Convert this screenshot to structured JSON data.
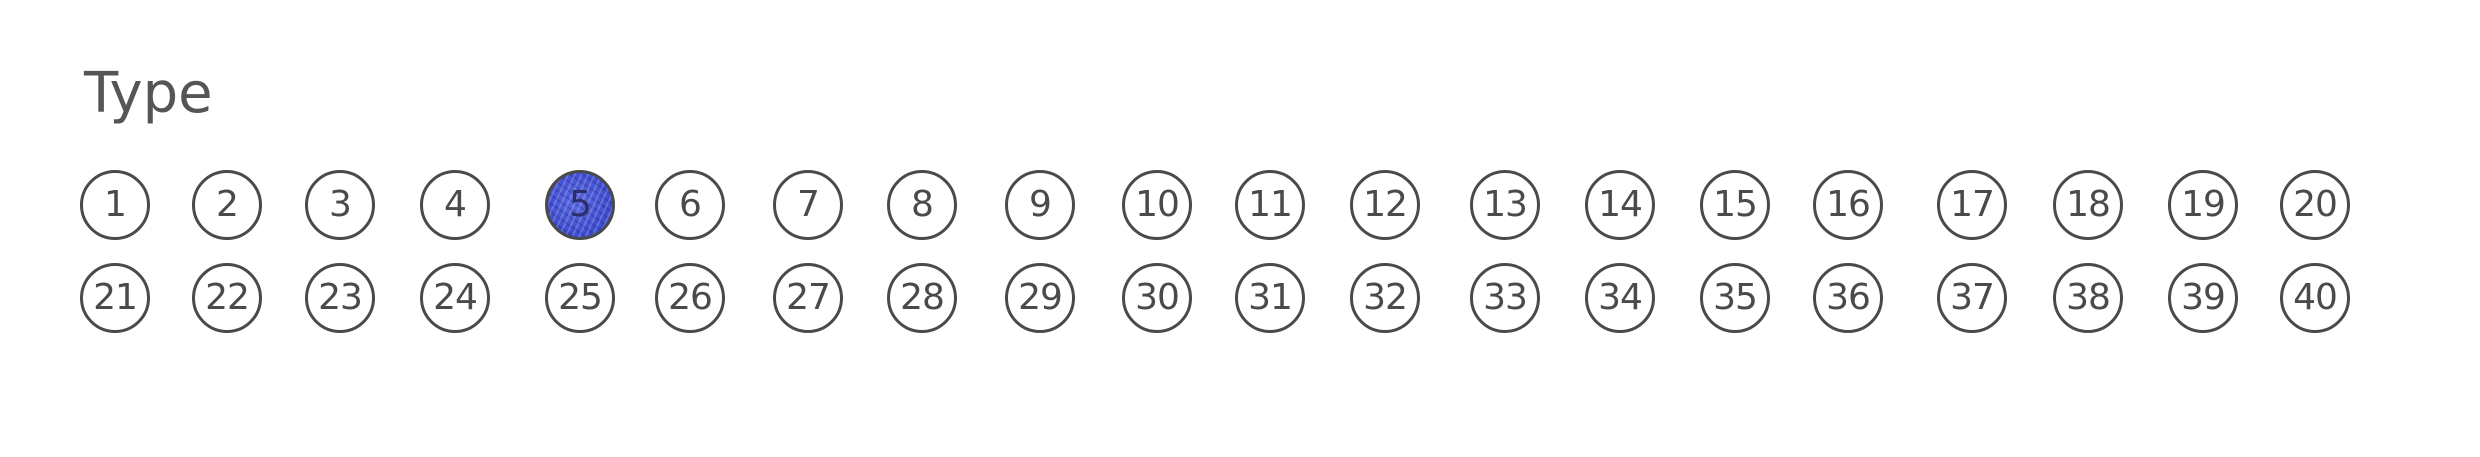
{
  "section_title": "Type",
  "options": [
    {
      "label": "1",
      "selected": false
    },
    {
      "label": "2",
      "selected": false
    },
    {
      "label": "3",
      "selected": false
    },
    {
      "label": "4",
      "selected": false
    },
    {
      "label": "5",
      "selected": true
    },
    {
      "label": "6",
      "selected": false
    },
    {
      "label": "7",
      "selected": false
    },
    {
      "label": "8",
      "selected": false
    },
    {
      "label": "9",
      "selected": false
    },
    {
      "label": "10",
      "selected": false
    },
    {
      "label": "11",
      "selected": false
    },
    {
      "label": "12",
      "selected": false
    },
    {
      "label": "13",
      "selected": false
    },
    {
      "label": "14",
      "selected": false
    },
    {
      "label": "15",
      "selected": false
    },
    {
      "label": "16",
      "selected": false
    },
    {
      "label": "17",
      "selected": false
    },
    {
      "label": "18",
      "selected": false
    },
    {
      "label": "19",
      "selected": false
    },
    {
      "label": "20",
      "selected": false
    },
    {
      "label": "21",
      "selected": false
    },
    {
      "label": "22",
      "selected": false
    },
    {
      "label": "23",
      "selected": false
    },
    {
      "label": "24",
      "selected": false
    },
    {
      "label": "25",
      "selected": false
    },
    {
      "label": "26",
      "selected": false
    },
    {
      "label": "27",
      "selected": false
    },
    {
      "label": "28",
      "selected": false
    },
    {
      "label": "29",
      "selected": false
    },
    {
      "label": "30",
      "selected": false
    },
    {
      "label": "31",
      "selected": false
    },
    {
      "label": "32",
      "selected": false
    },
    {
      "label": "33",
      "selected": false
    },
    {
      "label": "34",
      "selected": false
    },
    {
      "label": "35",
      "selected": false
    },
    {
      "label": "36",
      "selected": false
    },
    {
      "label": "37",
      "selected": false
    },
    {
      "label": "38",
      "selected": false
    },
    {
      "label": "39",
      "selected": false
    },
    {
      "label": "40",
      "selected": false
    }
  ],
  "colors": {
    "fill": "#4a56d6",
    "outline": "#4a4a4a",
    "text": "#555555"
  }
}
